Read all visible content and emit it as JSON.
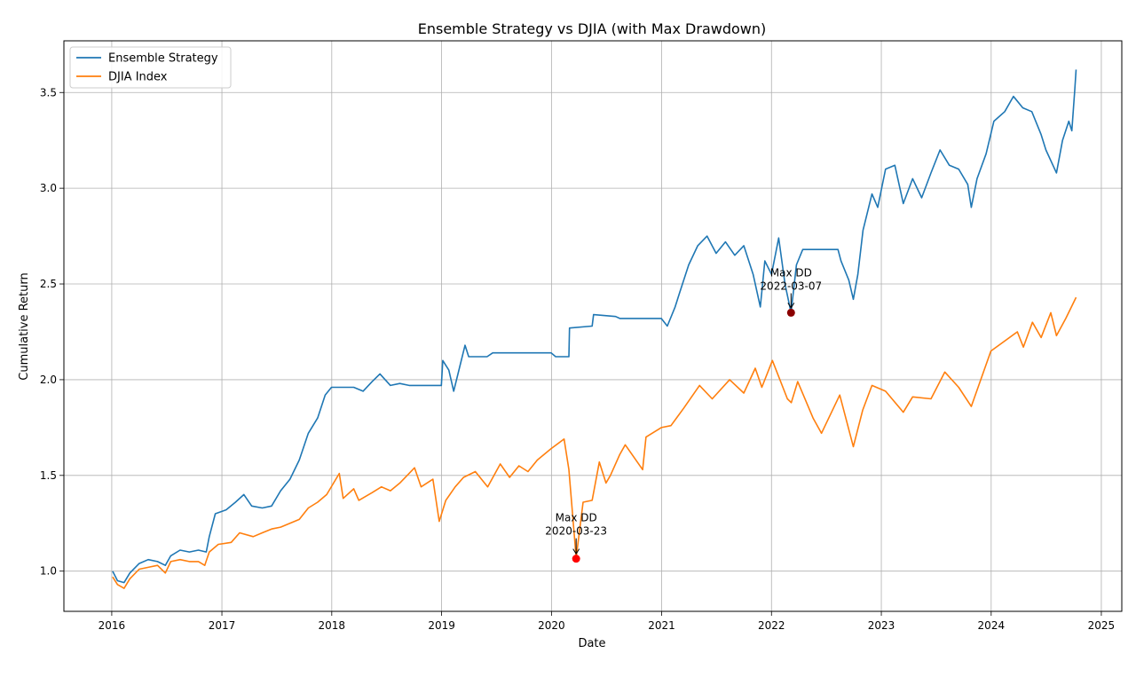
{
  "chart_data": {
    "type": "line",
    "title": "Ensemble Strategy vs DJIA (with Max Drawdown)",
    "xlabel": "Date",
    "ylabel": "Cumulative Return",
    "xlim": [
      "2015-07-26",
      "2025-03-10"
    ],
    "ylim": [
      0.79,
      3.77
    ],
    "x_ticks": [
      "2016",
      "2017",
      "2018",
      "2019",
      "2020",
      "2021",
      "2022",
      "2023",
      "2024",
      "2025"
    ],
    "y_ticks": [
      "1.0",
      "1.5",
      "2.0",
      "2.5",
      "3.0",
      "3.5"
    ],
    "grid": true,
    "legend": "top-left",
    "series": [
      {
        "name": "Ensemble Strategy",
        "color": "#1f77b4",
        "points": [
          [
            "2016-01-04",
            1.0
          ],
          [
            "2016-01-20",
            0.95
          ],
          [
            "2016-02-11",
            0.94
          ],
          [
            "2016-03-01",
            0.99
          ],
          [
            "2016-04-01",
            1.04
          ],
          [
            "2016-05-01",
            1.06
          ],
          [
            "2016-06-01",
            1.05
          ],
          [
            "2016-06-27",
            1.03
          ],
          [
            "2016-07-15",
            1.08
          ],
          [
            "2016-08-15",
            1.11
          ],
          [
            "2016-09-15",
            1.1
          ],
          [
            "2016-10-15",
            1.11
          ],
          [
            "2016-11-10",
            1.1
          ],
          [
            "2016-11-20",
            1.18
          ],
          [
            "2016-12-10",
            1.3
          ],
          [
            "2017-01-15",
            1.32
          ],
          [
            "2017-02-15",
            1.36
          ],
          [
            "2017-03-15",
            1.4
          ],
          [
            "2017-04-10",
            1.34
          ],
          [
            "2017-05-15",
            1.33
          ],
          [
            "2017-06-15",
            1.34
          ],
          [
            "2017-07-15",
            1.42
          ],
          [
            "2017-08-15",
            1.48
          ],
          [
            "2017-09-15",
            1.58
          ],
          [
            "2017-10-15",
            1.72
          ],
          [
            "2017-11-15",
            1.8
          ],
          [
            "2017-12-10",
            1.92
          ],
          [
            "2017-12-31",
            1.96
          ],
          [
            "2018-03-15",
            1.96
          ],
          [
            "2018-04-15",
            1.94
          ],
          [
            "2018-05-15",
            1.99
          ],
          [
            "2018-06-10",
            2.03
          ],
          [
            "2018-07-15",
            1.97
          ],
          [
            "2018-08-15",
            1.98
          ],
          [
            "2018-09-15",
            1.97
          ],
          [
            "2018-10-15",
            1.97
          ],
          [
            "2018-12-31",
            1.97
          ],
          [
            "2019-01-05",
            2.1
          ],
          [
            "2019-01-25",
            2.05
          ],
          [
            "2019-02-10",
            1.94
          ],
          [
            "2019-03-01",
            2.06
          ],
          [
            "2019-03-20",
            2.18
          ],
          [
            "2019-04-01",
            2.12
          ],
          [
            "2019-06-01",
            2.12
          ],
          [
            "2019-06-20",
            2.14
          ],
          [
            "2019-09-01",
            2.14
          ],
          [
            "2019-12-31",
            2.14
          ],
          [
            "2020-01-15",
            2.12
          ],
          [
            "2020-02-28",
            2.12
          ],
          [
            "2020-03-01",
            2.27
          ],
          [
            "2020-05-15",
            2.28
          ],
          [
            "2020-05-20",
            2.34
          ],
          [
            "2020-08-01",
            2.33
          ],
          [
            "2020-08-15",
            2.32
          ],
          [
            "2020-10-01",
            2.32
          ],
          [
            "2020-12-31",
            2.32
          ],
          [
            "2021-01-20",
            2.28
          ],
          [
            "2021-02-15",
            2.38
          ],
          [
            "2021-03-01",
            2.45
          ],
          [
            "2021-04-01",
            2.6
          ],
          [
            "2021-05-01",
            2.7
          ],
          [
            "2021-06-01",
            2.75
          ],
          [
            "2021-07-01",
            2.66
          ],
          [
            "2021-08-01",
            2.72
          ],
          [
            "2021-09-01",
            2.65
          ],
          [
            "2021-10-01",
            2.7
          ],
          [
            "2021-11-01",
            2.55
          ],
          [
            "2021-11-25",
            2.38
          ],
          [
            "2021-12-10",
            2.62
          ],
          [
            "2022-01-01",
            2.55
          ],
          [
            "2022-01-25",
            2.74
          ],
          [
            "2022-02-15",
            2.5
          ],
          [
            "2022-03-07",
            2.35
          ],
          [
            "2022-03-25",
            2.6
          ],
          [
            "2022-04-15",
            2.68
          ],
          [
            "2022-06-01",
            2.68
          ],
          [
            "2022-08-10",
            2.68
          ],
          [
            "2022-08-20",
            2.62
          ],
          [
            "2022-09-15",
            2.52
          ],
          [
            "2022-09-30",
            2.42
          ],
          [
            "2022-10-15",
            2.55
          ],
          [
            "2022-11-01",
            2.78
          ],
          [
            "2022-12-01",
            2.97
          ],
          [
            "2022-12-20",
            2.9
          ],
          [
            "2023-01-15",
            3.1
          ],
          [
            "2023-02-15",
            3.12
          ],
          [
            "2023-03-15",
            2.92
          ],
          [
            "2023-04-15",
            3.05
          ],
          [
            "2023-05-15",
            2.95
          ],
          [
            "2023-06-15",
            3.08
          ],
          [
            "2023-07-15",
            3.2
          ],
          [
            "2023-08-15",
            3.12
          ],
          [
            "2023-09-15",
            3.1
          ],
          [
            "2023-10-15",
            3.02
          ],
          [
            "2023-10-27",
            2.9
          ],
          [
            "2023-11-15",
            3.05
          ],
          [
            "2023-12-15",
            3.18
          ],
          [
            "2024-01-10",
            3.35
          ],
          [
            "2024-02-15",
            3.4
          ],
          [
            "2024-03-15",
            3.48
          ],
          [
            "2024-04-15",
            3.42
          ],
          [
            "2024-05-15",
            3.4
          ],
          [
            "2024-06-15",
            3.28
          ],
          [
            "2024-07-01",
            3.2
          ],
          [
            "2024-08-05",
            3.08
          ],
          [
            "2024-08-25",
            3.25
          ],
          [
            "2024-09-15",
            3.35
          ],
          [
            "2024-09-25",
            3.3
          ],
          [
            "2024-10-05",
            3.52
          ],
          [
            "2024-10-09",
            3.62
          ]
        ]
      },
      {
        "name": "DJIA Index",
        "color": "#ff7f0e",
        "points": [
          [
            "2016-01-04",
            0.97
          ],
          [
            "2016-01-20",
            0.93
          ],
          [
            "2016-02-11",
            0.91
          ],
          [
            "2016-03-01",
            0.96
          ],
          [
            "2016-04-01",
            1.01
          ],
          [
            "2016-05-01",
            1.02
          ],
          [
            "2016-06-01",
            1.03
          ],
          [
            "2016-06-27",
            0.99
          ],
          [
            "2016-07-15",
            1.05
          ],
          [
            "2016-08-15",
            1.06
          ],
          [
            "2016-09-15",
            1.05
          ],
          [
            "2016-10-15",
            1.05
          ],
          [
            "2016-11-05",
            1.03
          ],
          [
            "2016-11-20",
            1.1
          ],
          [
            "2016-12-20",
            1.14
          ],
          [
            "2017-02-01",
            1.15
          ],
          [
            "2017-03-01",
            1.2
          ],
          [
            "2017-04-15",
            1.18
          ],
          [
            "2017-05-15",
            1.2
          ],
          [
            "2017-06-15",
            1.22
          ],
          [
            "2017-07-15",
            1.23
          ],
          [
            "2017-08-15",
            1.25
          ],
          [
            "2017-09-15",
            1.27
          ],
          [
            "2017-10-15",
            1.33
          ],
          [
            "2017-11-15",
            1.36
          ],
          [
            "2017-12-15",
            1.4
          ],
          [
            "2018-01-26",
            1.51
          ],
          [
            "2018-02-08",
            1.38
          ],
          [
            "2018-03-15",
            1.43
          ],
          [
            "2018-04-01",
            1.37
          ],
          [
            "2018-05-15",
            1.41
          ],
          [
            "2018-06-15",
            1.44
          ],
          [
            "2018-07-15",
            1.42
          ],
          [
            "2018-08-15",
            1.46
          ],
          [
            "2018-10-03",
            1.54
          ],
          [
            "2018-10-25",
            1.44
          ],
          [
            "2018-12-03",
            1.48
          ],
          [
            "2018-12-24",
            1.26
          ],
          [
            "2019-01-15",
            1.37
          ],
          [
            "2019-02-15",
            1.44
          ],
          [
            "2019-03-15",
            1.49
          ],
          [
            "2019-04-23",
            1.52
          ],
          [
            "2019-06-03",
            1.44
          ],
          [
            "2019-07-15",
            1.56
          ],
          [
            "2019-08-15",
            1.49
          ],
          [
            "2019-09-15",
            1.55
          ],
          [
            "2019-10-15",
            1.52
          ],
          [
            "2019-11-15",
            1.58
          ],
          [
            "2019-12-31",
            1.64
          ],
          [
            "2020-02-12",
            1.69
          ],
          [
            "2020-02-28",
            1.53
          ],
          [
            "2020-03-23",
            1.07
          ],
          [
            "2020-04-15",
            1.36
          ],
          [
            "2020-05-15",
            1.37
          ],
          [
            "2020-06-08",
            1.57
          ],
          [
            "2020-06-30",
            1.46
          ],
          [
            "2020-07-15",
            1.5
          ],
          [
            "2020-08-15",
            1.61
          ],
          [
            "2020-09-02",
            1.66
          ],
          [
            "2020-10-30",
            1.53
          ],
          [
            "2020-11-10",
            1.7
          ],
          [
            "2020-12-31",
            1.75
          ],
          [
            "2021-02-01",
            1.76
          ],
          [
            "2021-03-15",
            1.85
          ],
          [
            "2021-05-07",
            1.97
          ],
          [
            "2021-06-18",
            1.9
          ],
          [
            "2021-08-15",
            2.0
          ],
          [
            "2021-10-01",
            1.93
          ],
          [
            "2021-11-08",
            2.06
          ],
          [
            "2021-11-30",
            1.96
          ],
          [
            "2022-01-04",
            2.1
          ],
          [
            "2022-02-23",
            1.9
          ],
          [
            "2022-03-08",
            1.88
          ],
          [
            "2022-03-29",
            1.99
          ],
          [
            "2022-05-19",
            1.8
          ],
          [
            "2022-06-16",
            1.72
          ],
          [
            "2022-08-16",
            1.92
          ],
          [
            "2022-09-30",
            1.65
          ],
          [
            "2022-10-31",
            1.84
          ],
          [
            "2022-12-01",
            1.97
          ],
          [
            "2023-01-15",
            1.94
          ],
          [
            "2023-03-15",
            1.83
          ],
          [
            "2023-04-15",
            1.91
          ],
          [
            "2023-06-15",
            1.9
          ],
          [
            "2023-07-31",
            2.04
          ],
          [
            "2023-09-15",
            1.96
          ],
          [
            "2023-10-27",
            1.86
          ],
          [
            "2023-12-31",
            2.15
          ],
          [
            "2024-03-28",
            2.25
          ],
          [
            "2024-04-17",
            2.17
          ],
          [
            "2024-05-17",
            2.3
          ],
          [
            "2024-06-15",
            2.22
          ],
          [
            "2024-07-17",
            2.35
          ],
          [
            "2024-08-05",
            2.23
          ],
          [
            "2024-09-05",
            2.32
          ],
          [
            "2024-10-09",
            2.43
          ]
        ]
      }
    ],
    "annotations": [
      {
        "label_line1": "Max DD",
        "label_line2": "2022-03-07",
        "x": "2022-03-07",
        "y": 2.35,
        "text_y": 2.47,
        "marker_color": "#8b0000"
      },
      {
        "label_line1": "Max DD",
        "label_line2": "2020-03-23",
        "x": "2020-03-23",
        "y": 1.065,
        "text_y": 1.19,
        "marker_color": "#ff0000"
      }
    ]
  }
}
